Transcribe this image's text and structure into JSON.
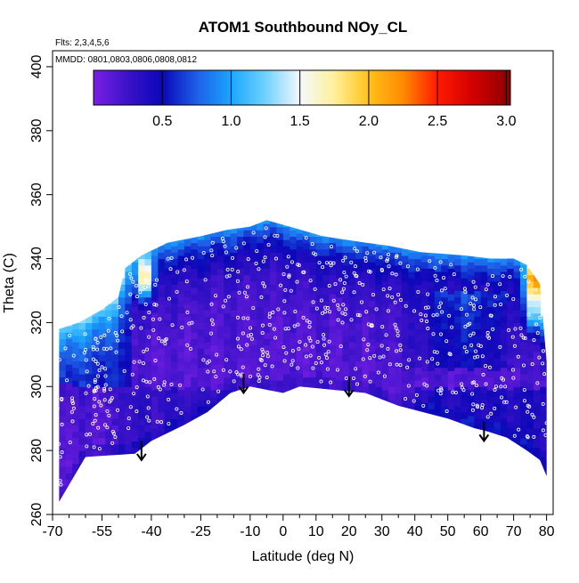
{
  "chart_data": {
    "type": "heatmap",
    "title": "ATOM1 Southbound NOy_CL",
    "annotations": [
      "Flts: 2,3,4,5,6",
      "MMDD: 0801,0803,0806,0808,0812"
    ],
    "xlabel": "Latitude (deg N)",
    "ylabel": "Theta (C)",
    "xlim": [
      -70,
      82
    ],
    "ylim": [
      260,
      405
    ],
    "x_ticks": [
      -70,
      -55,
      -40,
      -25,
      -10,
      0,
      10,
      20,
      30,
      40,
      50,
      60,
      70,
      80
    ],
    "x_tick_labels": [
      "-70",
      "-55",
      "-40",
      "-25",
      "-10",
      "0",
      "10",
      "20",
      "30",
      "40",
      "50",
      "60",
      "70",
      "80"
    ],
    "x_minor_ticks": [
      -65,
      -60,
      -50,
      -45,
      -35,
      -30,
      -20,
      -15,
      -5,
      5,
      15,
      25,
      35,
      45,
      55,
      65,
      75
    ],
    "y_ticks": [
      260,
      280,
      300,
      320,
      340,
      360,
      380,
      400
    ],
    "y_tick_labels": [
      "260",
      "280",
      "300",
      "320",
      "340",
      "360",
      "380",
      "400"
    ],
    "colorbar": {
      "range": [
        0,
        3.03
      ],
      "ticks": [
        0.5,
        1.0,
        1.5,
        2.0,
        2.5,
        3.0
      ],
      "tick_labels": [
        "0.5",
        "1.0",
        "1.5",
        "2.0",
        "2.5",
        "3.0"
      ],
      "stops": [
        {
          "value": 0.0,
          "color": "#7a1fe6"
        },
        {
          "value": 0.25,
          "color": "#3a12c8"
        },
        {
          "value": 0.5,
          "color": "#0a07b8"
        },
        {
          "value": 0.75,
          "color": "#1d5fe8"
        },
        {
          "value": 1.0,
          "color": "#1aa6ff"
        },
        {
          "value": 1.25,
          "color": "#6fd2ff"
        },
        {
          "value": 1.5,
          "color": "#f4f8ff"
        },
        {
          "value": 1.75,
          "color": "#fff09a"
        },
        {
          "value": 2.0,
          "color": "#ffc21a"
        },
        {
          "value": 2.25,
          "color": "#ff8a00"
        },
        {
          "value": 2.5,
          "color": "#ff1a00"
        },
        {
          "value": 2.75,
          "color": "#d40000"
        },
        {
          "value": 3.03,
          "color": "#8a0000"
        }
      ]
    },
    "surface_profile": [
      [
        -68,
        264
      ],
      [
        -60,
        278
      ],
      [
        -45,
        279
      ],
      [
        -40,
        283
      ],
      [
        -30,
        288
      ],
      [
        -23,
        292
      ],
      [
        -16,
        298
      ],
      [
        -10,
        300
      ],
      [
        -5,
        299
      ],
      [
        0,
        298
      ],
      [
        5,
        300
      ],
      [
        15,
        299
      ],
      [
        25,
        298
      ],
      [
        35,
        294
      ],
      [
        50,
        290
      ],
      [
        58,
        287
      ],
      [
        62,
        286
      ],
      [
        68,
        284
      ],
      [
        74,
        280
      ],
      [
        78,
        277
      ],
      [
        80,
        272
      ]
    ],
    "top_profile": [
      [
        -68,
        318
      ],
      [
        -62,
        320
      ],
      [
        -55,
        324
      ],
      [
        -50,
        328
      ],
      [
        -48,
        337
      ],
      [
        -43,
        341
      ],
      [
        -35,
        345
      ],
      [
        -25,
        347
      ],
      [
        -17,
        349
      ],
      [
        -10,
        350
      ],
      [
        -5,
        352
      ],
      [
        2,
        350
      ],
      [
        12,
        347
      ],
      [
        25,
        345
      ],
      [
        32,
        344
      ],
      [
        42,
        342
      ],
      [
        55,
        341
      ],
      [
        63,
        340
      ],
      [
        70,
        340
      ],
      [
        74,
        338
      ],
      [
        78,
        332
      ],
      [
        80,
        308
      ]
    ],
    "arrows": [
      {
        "lat": -43,
        "theta": 283
      },
      {
        "lat": -12,
        "theta": 304
      },
      {
        "lat": 20,
        "theta": 303
      },
      {
        "lat": 61,
        "theta": 289
      }
    ],
    "hotspots": [
      {
        "lat": -42,
        "theta": 334,
        "value": 2.2
      },
      {
        "lat": 76,
        "theta": 333,
        "value": 2.3
      },
      {
        "lat": 76,
        "theta": 323,
        "value": 1.8
      }
    ]
  }
}
